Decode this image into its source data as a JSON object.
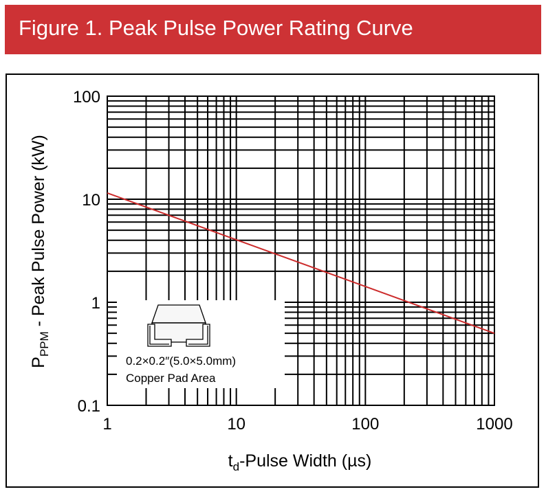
{
  "header": {
    "title": "Figure 1. Peak Pulse Power Rating Curve"
  },
  "colors": {
    "header_bg": "#cd3235",
    "curve": "#cc2b2b",
    "grid": "#000000"
  },
  "chart_data": {
    "type": "line",
    "title": "Figure 1. Peak Pulse Power Rating Curve",
    "xlabel": {
      "main": "t",
      "sub": "d",
      "rest": "-Pulse Width (µs)"
    },
    "ylabel": {
      "main": "P",
      "sub": "PPM",
      "rest": " - Peak Pulse Power (kW)"
    },
    "xscale": "log",
    "yscale": "log",
    "xlim": [
      1,
      1000
    ],
    "ylim": [
      0.1,
      100
    ],
    "grid": true,
    "xticks": [
      1,
      10,
      100,
      1000
    ],
    "xtick_labels": [
      "1",
      "10",
      "100",
      "1000"
    ],
    "yticks": [
      0.1,
      1,
      10,
      100
    ],
    "ytick_labels": [
      "0.1",
      "1",
      "10",
      "100"
    ],
    "series": [
      {
        "name": "Peak Pulse Power",
        "x": [
          1,
          1000
        ],
        "y": [
          11.5,
          0.5
        ]
      }
    ],
    "inset": {
      "line1": "0.2×0.2″(5.0×5.0mm)",
      "line2": "Copper Pad Area"
    }
  }
}
